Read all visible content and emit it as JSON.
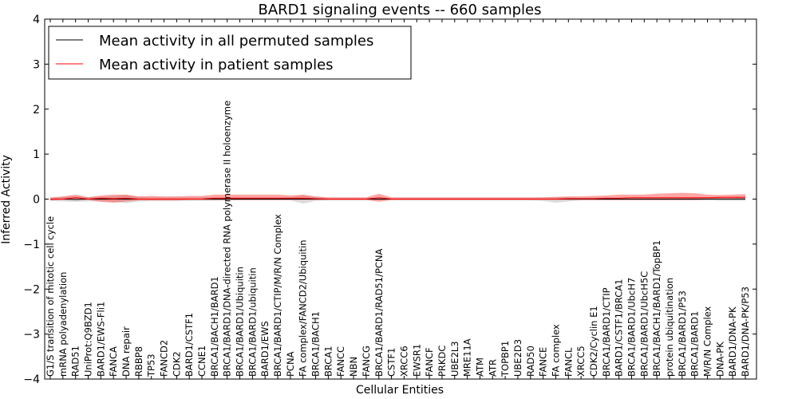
{
  "chart_data": {
    "type": "line",
    "title": "BARD1 signaling events -- 660 samples",
    "xlabel": "Cellular Entities",
    "ylabel": "Inferred Activity",
    "ylim": [
      -4,
      4
    ],
    "yticks": [
      4,
      3,
      2,
      1,
      0,
      -1,
      -2,
      -3,
      -4
    ],
    "ytick_labels": [
      "4",
      "3",
      "2",
      "1",
      "0",
      "−1",
      "−2",
      "−3",
      "−4"
    ],
    "grid": false,
    "legend_position": "top-left",
    "categories": [
      "G1/S transition of mitotic cell cycle",
      "mRNA polyadenylation",
      "RAD51",
      "UniProt:Q9BZD1",
      "BARD1/EWS-Fli1",
      "FANCA",
      "DNA repair",
      "RBBP8",
      "TP53",
      "FANCD2",
      "CDK2",
      "BARD1/CSTF1",
      "CCNE1",
      "BRCA1/BACH1/BARD1",
      "BRCA1/BARD1/DNA-directed RNA polymerase II holoenzyme",
      "BRCA1/BARD1/Ubiquitin",
      "BRCA1/BARD1/ubiquitin",
      "BARD1/EWS",
      "BRCA1/BARD1/CTIP/M/R/N Complex",
      "PCNA",
      "FA complex/FANCD2/Ubiquitin",
      "BRCA1/BACH1",
      "BRCA1",
      "FANCC",
      "NBN",
      "FANCG",
      "BRCA1/BARD1/RAD51/PCNA",
      "CSTF1",
      "XRCC6",
      "EWSR1",
      "FANCF",
      "PRKDC",
      "UBE2L3",
      "MRE11A",
      "ATM",
      "ATR",
      "TOPBP1",
      "UBE2D3",
      "RAD50",
      "FANCE",
      "FA complex",
      "FANCL",
      "XRCC5",
      "CDK2/Cyclin E1",
      "BRCA1/BARD1/CTIP",
      "BARD1/CSTF1/BRCA1",
      "BRCA1/BARD1/UbcH7",
      "BRCA1/BARD1/UbcH5C",
      "BRCA1/BACH1/BARD1/TopBP1",
      "protein ubiquitination",
      "BRCA1/BARD1/P53",
      "BRCA1/BARD1",
      "M/R/N Complex",
      "DNA-PK",
      "BARD1/DNA-PK",
      "BARD1/DNA-PK/P53"
    ],
    "series": [
      {
        "name": "Mean activity in all permuted samples",
        "color": "#000000",
        "values": [
          0,
          0,
          -0.01,
          0,
          0,
          0,
          0,
          0,
          0,
          0,
          0,
          0,
          0,
          0,
          0,
          0,
          0,
          0,
          0,
          0,
          0,
          0,
          0,
          0,
          0,
          0,
          0,
          0,
          0,
          0,
          0,
          0,
          0,
          0,
          0,
          0,
          0,
          0,
          0,
          0,
          0,
          0,
          0,
          0,
          0,
          0,
          0,
          0,
          0,
          0,
          0,
          0,
          0,
          0,
          0,
          0
        ],
        "band_low": [
          -0.04,
          -0.05,
          -0.06,
          -0.05,
          -0.05,
          -0.06,
          -0.09,
          -0.05,
          -0.04,
          -0.04,
          -0.04,
          -0.04,
          -0.04,
          -0.04,
          -0.03,
          -0.03,
          -0.03,
          -0.03,
          -0.03,
          -0.03,
          -0.1,
          -0.04,
          -0.03,
          -0.03,
          -0.03,
          -0.03,
          -0.03,
          -0.03,
          -0.03,
          -0.03,
          -0.03,
          -0.03,
          -0.03,
          -0.03,
          -0.03,
          -0.03,
          -0.03,
          -0.03,
          -0.03,
          -0.04,
          -0.08,
          -0.05,
          -0.03,
          -0.03,
          -0.03,
          -0.03,
          -0.03,
          -0.03,
          -0.03,
          -0.03,
          -0.03,
          -0.03,
          -0.03,
          -0.04,
          -0.04,
          -0.04
        ],
        "band_high": [
          0.04,
          0.05,
          0.06,
          0.05,
          0.05,
          0.06,
          0.09,
          0.05,
          0.04,
          0.04,
          0.04,
          0.04,
          0.04,
          0.04,
          0.04,
          0.04,
          0.04,
          0.04,
          0.04,
          0.04,
          0.08,
          0.04,
          0.03,
          0.03,
          0.03,
          0.03,
          0.03,
          0.03,
          0.03,
          0.03,
          0.03,
          0.03,
          0.03,
          0.03,
          0.03,
          0.03,
          0.03,
          0.03,
          0.03,
          0.04,
          0.04,
          0.04,
          0.03,
          0.03,
          0.03,
          0.03,
          0.03,
          0.03,
          0.03,
          0.03,
          0.04,
          0.04,
          0.04,
          0.04,
          0.04,
          0.04
        ]
      },
      {
        "name": "Mean activity in patient samples",
        "color": "#ff0000",
        "values": [
          0,
          0,
          0.03,
          0,
          0.02,
          0.01,
          0.02,
          0,
          0,
          0,
          0,
          0,
          0,
          0.02,
          0.02,
          0.02,
          0.02,
          0.02,
          0.02,
          0.02,
          0.02,
          0.01,
          0,
          0,
          0,
          0,
          0.03,
          0,
          0,
          0,
          0,
          0,
          0,
          0,
          0,
          0,
          0,
          0,
          0,
          0,
          0,
          0.01,
          0.01,
          0.01,
          0.02,
          0.02,
          0.03,
          0.03,
          0.03,
          0.03,
          0.03,
          0.03,
          0.03,
          0.04,
          0.04,
          0.04
        ],
        "band_low": [
          -0.03,
          -0.02,
          -0.01,
          -0.02,
          -0.06,
          -0.08,
          -0.05,
          -0.03,
          -0.03,
          -0.03,
          -0.03,
          -0.02,
          -0.02,
          -0.02,
          -0.02,
          -0.02,
          -0.02,
          -0.02,
          -0.02,
          -0.02,
          -0.02,
          -0.02,
          -0.02,
          -0.02,
          -0.02,
          -0.02,
          -0.06,
          -0.02,
          -0.02,
          -0.02,
          -0.02,
          -0.02,
          -0.02,
          -0.02,
          -0.02,
          -0.02,
          -0.02,
          -0.02,
          -0.02,
          -0.02,
          -0.02,
          -0.02,
          -0.02,
          -0.02,
          -0.02,
          -0.02,
          -0.02,
          -0.02,
          -0.02,
          -0.02,
          -0.02,
          -0.02,
          -0.01,
          0,
          0,
          0
        ],
        "band_high": [
          0.03,
          0.06,
          0.1,
          0.04,
          0.08,
          0.1,
          0.1,
          0.06,
          0.07,
          0.06,
          0.06,
          0.07,
          0.07,
          0.1,
          0.1,
          0.1,
          0.1,
          0.1,
          0.1,
          0.08,
          0.1,
          0.06,
          0.04,
          0.04,
          0.04,
          0.04,
          0.12,
          0.04,
          0.04,
          0.04,
          0.04,
          0.04,
          0.04,
          0.04,
          0.04,
          0.04,
          0.04,
          0.04,
          0.04,
          0.04,
          0.05,
          0.06,
          0.06,
          0.07,
          0.08,
          0.1,
          0.1,
          0.1,
          0.12,
          0.13,
          0.14,
          0.13,
          0.1,
          0.09,
          0.1,
          0.11
        ]
      }
    ]
  }
}
